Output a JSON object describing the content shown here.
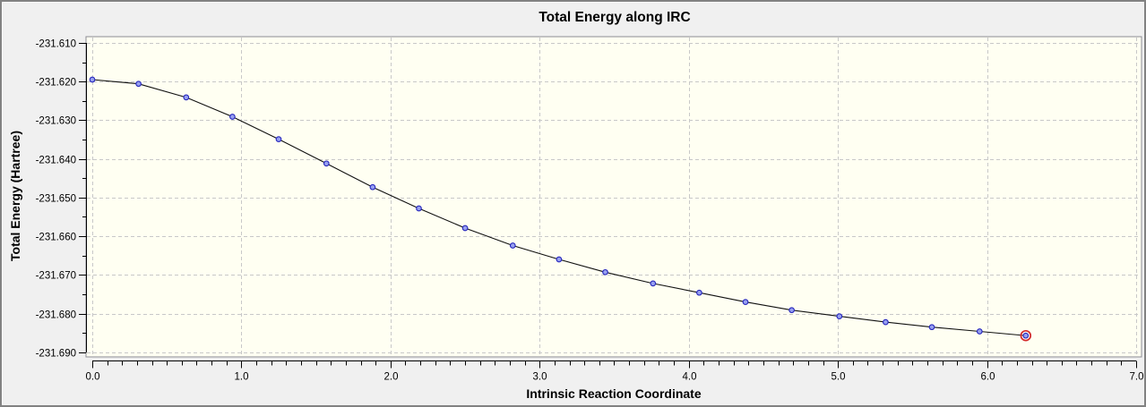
{
  "window": {
    "background": "#f0f0f0",
    "border_color": "#828282"
  },
  "chart_data": {
    "type": "line",
    "title": "Total Energy along IRC",
    "xlabel": "Intrinsic Reaction Coordinate",
    "ylabel": "Total Energy (Hartree)",
    "xlim": [
      -0.042,
      7.036
    ],
    "ylim": [
      -231.6912,
      -231.6084
    ],
    "grid": "dashed-at-major-ticks",
    "legend": "none",
    "x_major_ticks": [
      {
        "v": 0.0,
        "label": "0.0"
      },
      {
        "v": 1.0,
        "label": "1.0"
      },
      {
        "v": 2.0,
        "label": "2.0"
      },
      {
        "v": 3.0,
        "label": "3.0"
      },
      {
        "v": 4.0,
        "label": "4.0"
      },
      {
        "v": 5.0,
        "label": "5.0"
      },
      {
        "v": 6.0,
        "label": "6.0"
      },
      {
        "v": 7.0,
        "label": "7.0"
      }
    ],
    "x_minor_step": 0.1,
    "y_major_ticks": [
      {
        "v": -231.61,
        "label": "-231.610"
      },
      {
        "v": -231.62,
        "label": "-231.620"
      },
      {
        "v": -231.63,
        "label": "-231.630"
      },
      {
        "v": -231.64,
        "label": "-231.640"
      },
      {
        "v": -231.65,
        "label": "-231.650"
      },
      {
        "v": -231.66,
        "label": "-231.660"
      },
      {
        "v": -231.67,
        "label": "-231.670"
      },
      {
        "v": -231.68,
        "label": "-231.680"
      },
      {
        "v": -231.69,
        "label": "-231.690"
      }
    ],
    "y_minor_step": 0.005,
    "series": [
      {
        "name": "Total Energy",
        "x": [
          0.0,
          0.31,
          0.63,
          0.94,
          1.25,
          1.57,
          1.88,
          2.19,
          2.5,
          2.82,
          3.13,
          3.44,
          3.76,
          4.07,
          4.38,
          4.69,
          5.01,
          5.32,
          5.63,
          5.95,
          6.26
        ],
        "y": [
          -231.6195,
          -231.6206,
          -231.6241,
          -231.6291,
          -231.6349,
          -231.6412,
          -231.6473,
          -231.6528,
          -231.6579,
          -231.6624,
          -231.666,
          -231.6693,
          -231.6722,
          -231.6746,
          -231.677,
          -231.6791,
          -231.6807,
          -231.6822,
          -231.6835,
          -231.6846,
          -231.6857
        ]
      }
    ],
    "highlighted_point_index": 20,
    "colors": {
      "plot_background": "#fffff2",
      "frame": "#8b8b94",
      "grid": "#c8c8c8",
      "line": "#111111",
      "marker_fill": "#97a0ef",
      "marker_stroke": "#2525bd",
      "highlight_ring": "#d32b2b",
      "axis": "#000000",
      "text": "#000000"
    }
  }
}
